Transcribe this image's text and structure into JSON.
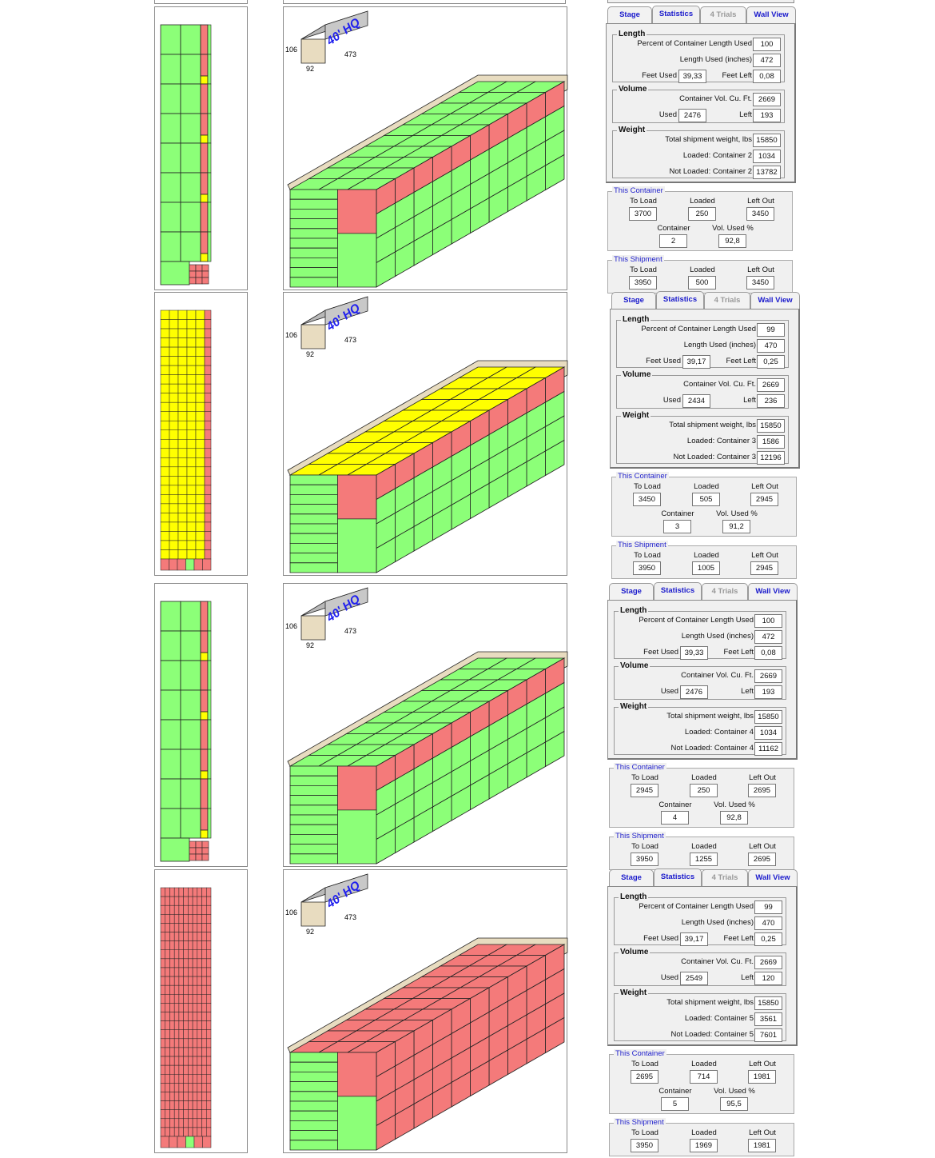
{
  "tabs": {
    "stage": "Stage",
    "statistics": "Statistics",
    "trials": "4 Trials",
    "wall_view": "Wall View"
  },
  "labels": {
    "length": "Length",
    "pct_length": "Percent of Container Length Used",
    "length_used": "Length Used (inches)",
    "feet_used": "Feet Used",
    "feet_left": "Feet Left",
    "volume": "Volume",
    "container_vol": "Container Vol. Cu. Ft.",
    "used": "Used",
    "left": "Left",
    "weight": "Weight",
    "total_weight": "Total shipment weight, lbs",
    "this_container": "This Container",
    "to_load": "To Load",
    "loaded": "Loaded",
    "left_out": "Left Out",
    "container": "Container",
    "vol_used_pct": "Vol. Used %",
    "this_shipment": "This Shipment"
  },
  "container_icon": {
    "type": "40' HQ",
    "height": "106",
    "width": "92",
    "length": "473"
  },
  "colors": {
    "green": "#8cff78",
    "red": "#f47a7a",
    "yellow": "#ffff00",
    "wall": "#e8dcc0",
    "tab_text": "#1a1acc"
  },
  "rows": [
    {
      "palette": {
        "top": "#8cff78",
        "side_upper": "#f47a7a",
        "side_lower": "#8cff78",
        "front": "#8cff78",
        "plan": "green"
      },
      "stats": {
        "pct_length": "100",
        "length_used": "472",
        "feet_used": "39,33",
        "feet_left": "0,08",
        "container_vol": "2669",
        "vol_used": "2476",
        "vol_left": "193",
        "total_weight": "15850",
        "loaded_label": "Loaded: Container 2",
        "loaded": "1034",
        "not_loaded_label": "Not Loaded: Container 2",
        "not_loaded": "13782"
      },
      "this_container": {
        "to_load": "3700",
        "loaded": "250",
        "left_out": "3450",
        "container": "2",
        "vol_used_pct": "92,8"
      },
      "this_shipment": {
        "to_load": "3950",
        "loaded": "500",
        "left_out": "3450"
      }
    },
    {
      "palette": {
        "top": "#ffff00",
        "side_upper": "#f47a7a",
        "side_lower": "#8cff78",
        "front": "#8cff78",
        "plan": "yellow"
      },
      "stats": {
        "pct_length": "99",
        "length_used": "470",
        "feet_used": "39,17",
        "feet_left": "0,25",
        "container_vol": "2669",
        "vol_used": "2434",
        "vol_left": "236",
        "total_weight": "15850",
        "loaded_label": "Loaded: Container 3",
        "loaded": "1586",
        "not_loaded_label": "Not Loaded: Container 3",
        "not_loaded": "12196"
      },
      "this_container": {
        "to_load": "3450",
        "loaded": "505",
        "left_out": "2945",
        "container": "3",
        "vol_used_pct": "91,2"
      },
      "this_shipment": {
        "to_load": "3950",
        "loaded": "1005",
        "left_out": "2945"
      }
    },
    {
      "palette": {
        "top": "#8cff78",
        "side_upper": "#f47a7a",
        "side_lower": "#8cff78",
        "front": "#8cff78",
        "plan": "green"
      },
      "stats": {
        "pct_length": "100",
        "length_used": "472",
        "feet_used": "39,33",
        "feet_left": "0,08",
        "container_vol": "2669",
        "vol_used": "2476",
        "vol_left": "193",
        "total_weight": "15850",
        "loaded_label": "Loaded: Container 4",
        "loaded": "1034",
        "not_loaded_label": "Not Loaded: Container 4",
        "not_loaded": "11162"
      },
      "this_container": {
        "to_load": "2945",
        "loaded": "250",
        "left_out": "2695",
        "container": "4",
        "vol_used_pct": "92,8"
      },
      "this_shipment": {
        "to_load": "3950",
        "loaded": "1255",
        "left_out": "2695"
      }
    },
    {
      "palette": {
        "top": "#f47a7a",
        "side_upper": "#f47a7a",
        "side_lower": "#f47a7a",
        "front": "#8cff78",
        "plan": "red"
      },
      "stats": {
        "pct_length": "99",
        "length_used": "470",
        "feet_used": "39,17",
        "feet_left": "0,25",
        "container_vol": "2669",
        "vol_used": "2549",
        "vol_left": "120",
        "total_weight": "15850",
        "loaded_label": "Loaded: Container 5",
        "loaded": "3561",
        "not_loaded_label": "Not Loaded: Container 5",
        "not_loaded": "7601"
      },
      "this_container": {
        "to_load": "2695",
        "loaded": "714",
        "left_out": "1981",
        "container": "5",
        "vol_used_pct": "95,5"
      },
      "this_shipment": {
        "to_load": "3950",
        "loaded": "1969",
        "left_out": "1981"
      }
    }
  ]
}
